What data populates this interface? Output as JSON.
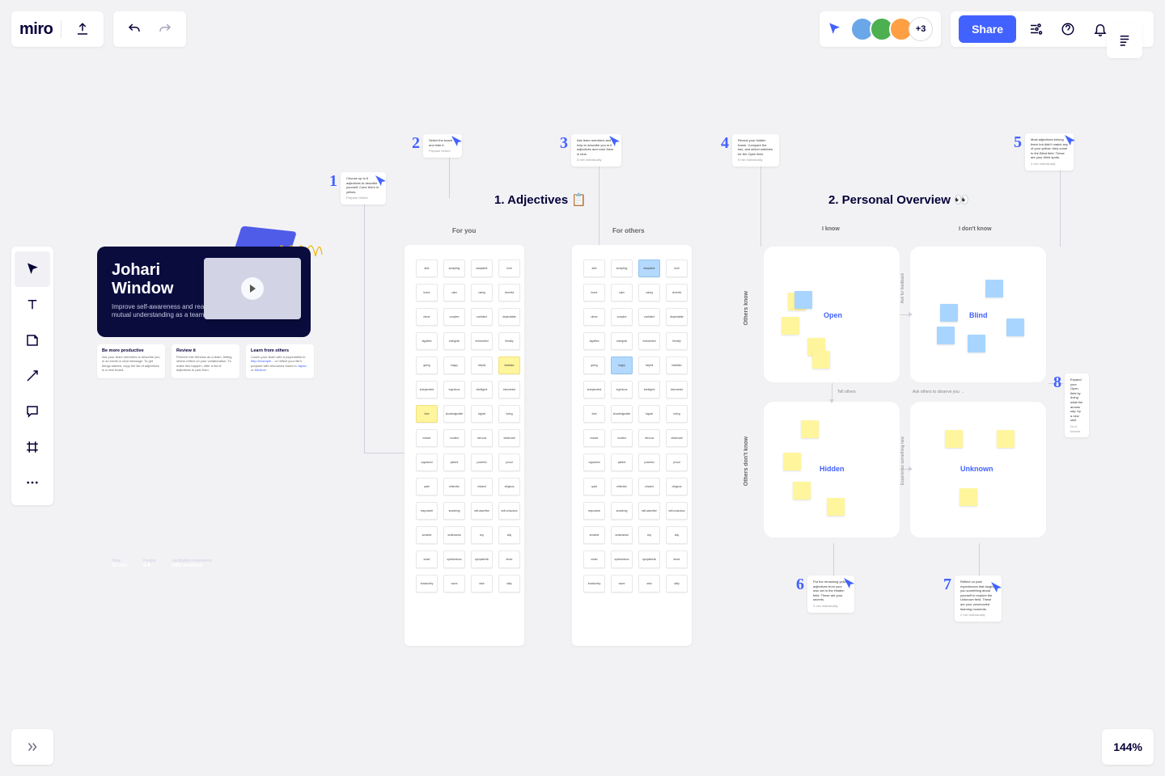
{
  "app": {
    "logo": "miro"
  },
  "topbar": {
    "share": "Share",
    "more_avatars": "+3",
    "avatars": [
      {
        "bg": "#6aa7e8"
      },
      {
        "bg": "#4caf50"
      },
      {
        "bg": "#ff9f43"
      }
    ]
  },
  "zoom": "144%",
  "intro": {
    "title_line1": "Johari",
    "title_line2": "Window",
    "subtitle": "Improve self-awareness and reach mutual understanding as a team.",
    "stat1_label": "Time",
    "stat1_value": "30 min",
    "stat2_label": "People",
    "stat2_value": "3-8",
    "stat3_label": "Facilitation experience",
    "stat3_value": "little required"
  },
  "info_cards": [
    {
      "title": "Be more productive",
      "body": "Ask your team members to describe you in an email or chat message. To get things started, copy the list of adjectives in a new board."
    },
    {
      "title": "Review it",
      "body": "Perform this Window as a team, letting others reflect on your collaboration. To make this happen, offer a list of adjectives to pick from."
    },
    {
      "title": "Learn from others",
      "body": "Coach your team with a psychiatrist in http://example.com/resource or reflect your life's purpose with resources found in Japan or Medium."
    }
  ],
  "section1_title": "1. Adjectives 📋",
  "section2_title": "2. Personal Overview 👀",
  "panel_labels": {
    "for_you": "For you",
    "for_others": "For others"
  },
  "grid_you": {
    "cols": 4,
    "items": [
      "able",
      "accepting",
      "adaptable",
      "bold",
      "brave",
      "calm",
      "caring",
      "cheerful",
      "clever",
      "complex",
      "confident",
      "dependable",
      "dignified",
      "energetic",
      "extroverted",
      "friendly",
      "giving",
      "happy",
      "helpful",
      "idealistic",
      "independent",
      "ingenious",
      "intelligent",
      "introverted",
      "kind",
      "knowledgeable",
      "logical",
      "loving",
      "mature",
      "modest",
      "nervous",
      "observant",
      "organized",
      "patient",
      "powerful",
      "proud",
      "quiet",
      "reflective",
      "relaxed",
      "religious",
      "responsive",
      "searching",
      "self-assertive",
      "self-conscious",
      "sensible",
      "sentimental",
      "shy",
      "silly",
      "smart",
      "spontaneous",
      "sympathetic",
      "tense",
      "trustworthy",
      "warm",
      "wise",
      "witty"
    ],
    "highlights": {
      "19": "yellow",
      "24": "yellow"
    }
  },
  "grid_others": {
    "cols": 4,
    "items": [
      "able",
      "accepting",
      "adaptable",
      "bold",
      "brave",
      "calm",
      "caring",
      "cheerful",
      "clever",
      "complex",
      "confident",
      "dependable",
      "dignified",
      "energetic",
      "extroverted",
      "friendly",
      "giving",
      "happy",
      "helpful",
      "idealistic",
      "independent",
      "ingenious",
      "intelligent",
      "introverted",
      "kind",
      "knowledgeable",
      "logical",
      "loving",
      "mature",
      "modest",
      "nervous",
      "observant",
      "organized",
      "patient",
      "powerful",
      "proud",
      "quiet",
      "reflective",
      "relaxed",
      "religious",
      "responsive",
      "searching",
      "self-assertive",
      "self-conscious",
      "sensible",
      "sentimental",
      "shy",
      "silly",
      "smart",
      "spontaneous",
      "sympathetic",
      "tense",
      "trustworthy",
      "warm",
      "wise",
      "witty"
    ],
    "highlights": {
      "2": "blue",
      "17": "blue"
    }
  },
  "axes": {
    "i_know": "I know",
    "i_dont_know": "I don't know",
    "others_know": "Others know",
    "others_dont_know": "Others don't know"
  },
  "quadrants": {
    "open": "Open",
    "blind": "Blind",
    "hidden": "Hidden",
    "unknown": "Unknown"
  },
  "micro": {
    "tell_others": "Tell others",
    "ask_observe": "Ask others to observe you →",
    "ask_feedback": "Ask for feedback",
    "experience_new": "Experience something new"
  },
  "steps": {
    "s1": {
      "num": "1",
      "text": "Choose up to 6 adjectives to describe yourself. Color them in yellow.",
      "sub": "Prepare before"
    },
    "s2": {
      "num": "2",
      "text": "Select the board and hide it.",
      "sub": "Prepare before"
    },
    "s3": {
      "num": "3",
      "text": "Ask team members and help to describe you in 6 adjectives and color them in blue.",
      "sub": "5 min individually"
    },
    "s4": {
      "num": "4",
      "text": "Reveal your hidden frame. Compare the two, and select matches for the Open field.",
      "sub": "5 min individually"
    },
    "s5": {
      "num": "5",
      "text": "Most adjectives belong there but didn't match any of your yellow: they come to the Blind field. These are your blind spots.",
      "sub": "2 min individually"
    },
    "s6": {
      "num": "6",
      "text": "Put the remaining yellow adjectives from your own set in the Hidden field. These are your secrets.",
      "sub": "2 min individually"
    },
    "s7": {
      "num": "7",
      "text": "Reflect on past experiences that taught you something about yourself to explore the Unknown field. These are your unschooled learning moments.",
      "sub": "2 min individually"
    },
    "s8": {
      "num": "8",
      "text": "Expand your Open field by doing what the arrows say: try a new skill.",
      "sub": "Do it forever"
    }
  },
  "colors": {
    "accent": "#4262ff",
    "bg": "#f2f2f5",
    "panel": "#ffffff",
    "sticky_yellow": "#fff59d",
    "sticky_blue": "#a8d5ff"
  }
}
